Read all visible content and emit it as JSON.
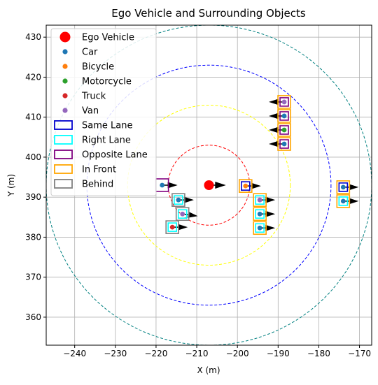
{
  "chart_data": {
    "type": "scatter",
    "title": "Ego Vehicle and Surrounding Objects",
    "xlabel": "X (m)",
    "ylabel": "Y (m)",
    "xlim": [
      -247,
      -167
    ],
    "ylim": [
      353,
      433
    ],
    "x_ticks": [
      -240,
      -230,
      -220,
      -210,
      -200,
      -190,
      -180,
      -170
    ],
    "y_ticks": [
      360,
      370,
      380,
      390,
      400,
      410,
      420,
      430
    ],
    "grid": true,
    "legend_position": "top-left",
    "ego": {
      "name": "Ego Vehicle",
      "x": -207,
      "y": 393,
      "heading_deg": 0,
      "color": "#ff0000"
    },
    "range_rings": [
      {
        "radius": 10,
        "color": "#ff0000"
      },
      {
        "radius": 20,
        "color": "#ffff00"
      },
      {
        "radius": 30,
        "color": "#0000ff"
      },
      {
        "radius": 40,
        "color": "#008080"
      }
    ],
    "classes": [
      {
        "name": "Car",
        "color": "#1f77b4"
      },
      {
        "name": "Bicycle",
        "color": "#ff7f0e"
      },
      {
        "name": "Motorcycle",
        "color": "#2ca02c"
      },
      {
        "name": "Truck",
        "color": "#d62728"
      },
      {
        "name": "Van",
        "color": "#9467bd"
      }
    ],
    "box_categories": [
      {
        "name": "Same Lane",
        "color": "#0000cd"
      },
      {
        "name": "Right Lane",
        "color": "#00ffff"
      },
      {
        "name": "Opposite Lane",
        "color": "#800080"
      },
      {
        "name": "In Front",
        "color": "#ffa500"
      },
      {
        "name": "Behind",
        "color": "#808080"
      }
    ],
    "objects": [
      {
        "x": -218.5,
        "y": 393.0,
        "class": "Car",
        "boxes": [
          "Opposite Lane"
        ],
        "heading_deg": 0
      },
      {
        "x": -214.5,
        "y": 389.3,
        "class": "Car",
        "boxes": [
          "Behind",
          "Right Lane"
        ],
        "heading_deg": 0
      },
      {
        "x": -213.5,
        "y": 385.8,
        "class": "Van",
        "boxes": [
          "Behind",
          "Right Lane"
        ],
        "heading_deg": -8
      },
      {
        "x": -216.0,
        "y": 382.5,
        "class": "Truck",
        "boxes": [
          "Behind",
          "Right Lane"
        ],
        "heading_deg": 0
      },
      {
        "x": -198.0,
        "y": 392.8,
        "class": "Bicycle",
        "boxes": [
          "In Front",
          "Same Lane"
        ],
        "heading_deg": 0
      },
      {
        "x": -194.5,
        "y": 389.3,
        "class": "Van",
        "boxes": [
          "In Front",
          "Right Lane"
        ],
        "heading_deg": 0
      },
      {
        "x": -194.5,
        "y": 385.8,
        "class": "Car",
        "boxes": [
          "In Front",
          "Right Lane"
        ],
        "heading_deg": 0
      },
      {
        "x": -194.5,
        "y": 382.3,
        "class": "Car",
        "boxes": [
          "In Front",
          "Right Lane"
        ],
        "heading_deg": 0
      },
      {
        "x": -188.5,
        "y": 413.8,
        "class": "Van",
        "boxes": [
          "In Front",
          "Opposite Lane"
        ],
        "heading_deg": 180
      },
      {
        "x": -188.5,
        "y": 410.3,
        "class": "Car",
        "boxes": [
          "In Front",
          "Opposite Lane"
        ],
        "heading_deg": 180
      },
      {
        "x": -188.5,
        "y": 406.8,
        "class": "Motorcycle",
        "boxes": [
          "In Front",
          "Opposite Lane"
        ],
        "heading_deg": 180
      },
      {
        "x": -188.5,
        "y": 403.3,
        "class": "Car",
        "boxes": [
          "In Front",
          "Opposite Lane"
        ],
        "heading_deg": 180
      },
      {
        "x": -174.0,
        "y": 392.5,
        "class": "Car",
        "boxes": [
          "In Front",
          "Same Lane"
        ],
        "heading_deg": 0
      },
      {
        "x": -174.0,
        "y": 389.0,
        "class": "Car",
        "boxes": [
          "In Front",
          "Right Lane"
        ],
        "heading_deg": 0
      }
    ]
  }
}
